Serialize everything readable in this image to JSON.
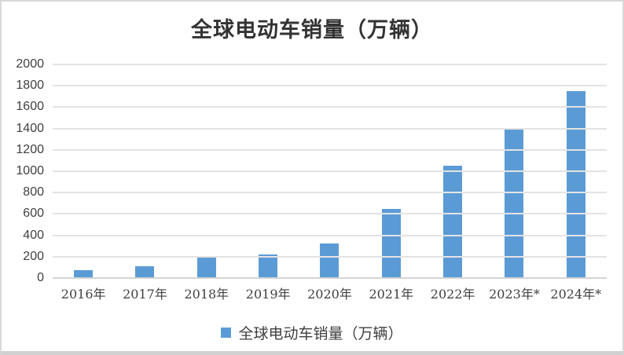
{
  "chart_data": {
    "type": "bar",
    "title": "全球电动车销量（万辆）",
    "categories": [
      "2016年",
      "2017年",
      "2018年",
      "2019年",
      "2020年",
      "2021年",
      "2022年",
      "2023年*",
      "2024年*"
    ],
    "values": [
      70,
      110,
      200,
      220,
      320,
      650,
      1050,
      1400,
      1750
    ],
    "series_name": "全球电动车销量（万辆）",
    "xlabel": "",
    "ylabel": "",
    "ylim": [
      0,
      2000
    ],
    "ytick_step": 200,
    "yticks": [
      "0",
      "200",
      "400",
      "600",
      "800",
      "1000",
      "1200",
      "1400",
      "1600",
      "1800",
      "2000"
    ],
    "grid": true,
    "legend_position": "bottom",
    "legend_label": "全球电动车销量（万辆）"
  },
  "colors": {
    "bar": "#5b9bd5",
    "gridline": "#e3e3e3",
    "axis_line": "#d4d4d4",
    "text": "#404040",
    "title": "#333333",
    "frame_border": "#d9d9d9"
  }
}
